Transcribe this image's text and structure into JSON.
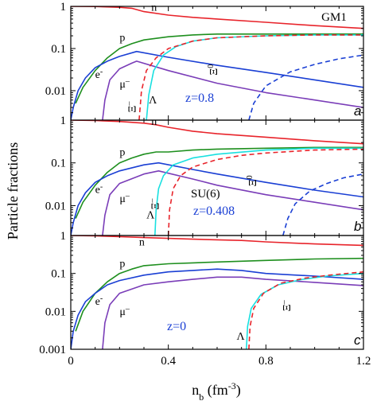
{
  "figure": {
    "ylabel": "Particle fractions",
    "xlabel": "n",
    "xlabel_sub": "b",
    "xlabel_unit": " (fm",
    "xlabel_exp": "-3",
    "xlabel_close": ")"
  },
  "x_ticks": [
    "0",
    "0.4",
    "0.8",
    "1.2"
  ],
  "y_ticks": {
    "panel_a": [
      "1",
      "0.1",
      "0.01"
    ],
    "panel_b": [
      "1",
      "0.1",
      "0.01"
    ],
    "panel_c": [
      "1",
      "0.1",
      "0.01",
      "0.001"
    ]
  },
  "colors": {
    "n": "#e8242b",
    "p": "#1e8f1e",
    "e": "#1a3fd4",
    "mu": "#7a3db8",
    "lambda": "#19e0e0",
    "xi_minus": "#e8242b",
    "xi_zero": "#1a3fd4",
    "z_text": "#1a3fd4"
  },
  "chart_data": [
    {
      "type": "line",
      "panel": "a",
      "panel_letter": "a",
      "model": "GM1",
      "z_text": "z=0.8",
      "xlim": [
        0,
        1.2
      ],
      "ylim": [
        0.002,
        1
      ],
      "yscale": "log",
      "series": [
        {
          "name": "n",
          "key": "n",
          "dashed": false,
          "x": [
            0,
            0.1,
            0.2,
            0.25,
            0.3,
            0.4,
            0.5,
            0.6,
            0.8,
            1.0,
            1.2
          ],
          "y": [
            1,
            0.99,
            0.95,
            0.9,
            0.75,
            0.62,
            0.55,
            0.5,
            0.42,
            0.35,
            0.3
          ]
        },
        {
          "name": "p",
          "key": "p",
          "dashed": false,
          "x": [
            0.02,
            0.05,
            0.1,
            0.15,
            0.2,
            0.25,
            0.3,
            0.4,
            0.5,
            0.6,
            0.8,
            1.0,
            1.2
          ],
          "y": [
            0.005,
            0.012,
            0.03,
            0.06,
            0.1,
            0.13,
            0.16,
            0.19,
            0.21,
            0.22,
            0.22,
            0.22,
            0.22
          ]
        },
        {
          "name": "e",
          "key": "e",
          "dashed": false,
          "x": [
            0.0,
            0.01,
            0.03,
            0.06,
            0.1,
            0.15,
            0.2,
            0.27,
            0.4,
            0.6,
            0.8,
            1.0,
            1.2
          ],
          "y": [
            0.002,
            0.004,
            0.01,
            0.02,
            0.035,
            0.05,
            0.065,
            0.085,
            0.062,
            0.04,
            0.027,
            0.018,
            0.012
          ]
        },
        {
          "name": "μ⁻",
          "key": "mu",
          "dashed": false,
          "x": [
            0.13,
            0.14,
            0.16,
            0.2,
            0.25,
            0.27,
            0.4,
            0.6,
            0.8,
            1.0,
            1.2
          ],
          "y": [
            0.002,
            0.006,
            0.018,
            0.033,
            0.045,
            0.05,
            0.03,
            0.015,
            0.009,
            0.006,
            0.004
          ]
        },
        {
          "name": "Λ",
          "key": "lambda",
          "dashed": false,
          "x": [
            0.31,
            0.32,
            0.34,
            0.38,
            0.43,
            0.5,
            0.6,
            0.8,
            1.0,
            1.2
          ],
          "y": [
            0.002,
            0.008,
            0.03,
            0.07,
            0.11,
            0.15,
            0.18,
            0.2,
            0.21,
            0.21
          ]
        },
        {
          "name": "Ξ⁻",
          "key": "xi_minus",
          "dashed": true,
          "x": [
            0.28,
            0.29,
            0.31,
            0.35,
            0.4,
            0.5,
            0.6,
            0.8,
            1.0,
            1.2
          ],
          "y": [
            0.002,
            0.01,
            0.03,
            0.06,
            0.1,
            0.15,
            0.18,
            0.2,
            0.21,
            0.21
          ]
        },
        {
          "name": "Ξ⁰",
          "key": "xi_zero",
          "dashed": true,
          "x": [
            0.73,
            0.75,
            0.8,
            0.9,
            1.0,
            1.1,
            1.2
          ],
          "y": [
            0.002,
            0.005,
            0.013,
            0.028,
            0.042,
            0.057,
            0.07
          ]
        }
      ],
      "labels": [
        {
          "text": "n",
          "key": "n",
          "x": 0.33,
          "y": 0.78,
          "rot": 0
        },
        {
          "text": "p",
          "key": "p",
          "x": 0.2,
          "y": 0.15,
          "rot": 0
        },
        {
          "text": "e",
          "key": "e",
          "sup": "-",
          "x": 0.1,
          "y": 0.02,
          "rot": 0
        },
        {
          "text": "μ",
          "key": "mu",
          "sup": "–",
          "x": 0.2,
          "y": 0.012,
          "rot": 0
        },
        {
          "text": "Λ",
          "key": "lambda",
          "x": 0.32,
          "y": 0.005,
          "rot": 0
        },
        {
          "text": "Ξ",
          "key": "xi_minus",
          "sup": "–",
          "x": 0.265,
          "y": 0.003,
          "rot": -90
        },
        {
          "text": "Ξ",
          "key": "xi_zero",
          "sup": "0",
          "x": 0.6,
          "y": 0.023,
          "rot": -90
        }
      ]
    },
    {
      "type": "line",
      "panel": "b",
      "panel_letter": "b",
      "model": "SU(6)",
      "z_text": "z=0.408",
      "xlim": [
        0,
        1.2
      ],
      "ylim": [
        0.002,
        1
      ],
      "yscale": "log",
      "series": [
        {
          "name": "n",
          "key": "n",
          "dashed": false,
          "x": [
            0,
            0.1,
            0.2,
            0.3,
            0.35,
            0.4,
            0.5,
            0.6,
            0.8,
            1.0,
            1.2
          ],
          "y": [
            1,
            0.98,
            0.93,
            0.85,
            0.78,
            0.68,
            0.55,
            0.48,
            0.4,
            0.33,
            0.28
          ]
        },
        {
          "name": "p",
          "key": "p",
          "dashed": false,
          "x": [
            0.02,
            0.05,
            0.1,
            0.15,
            0.2,
            0.25,
            0.3,
            0.35,
            0.4,
            0.5,
            0.6,
            0.8,
            1.0,
            1.2
          ],
          "y": [
            0.005,
            0.012,
            0.03,
            0.06,
            0.1,
            0.13,
            0.16,
            0.18,
            0.18,
            0.2,
            0.21,
            0.22,
            0.23,
            0.23
          ]
        },
        {
          "name": "e",
          "key": "e",
          "dashed": false,
          "x": [
            0.0,
            0.01,
            0.03,
            0.06,
            0.1,
            0.15,
            0.2,
            0.3,
            0.36,
            0.5,
            0.6,
            0.8,
            1.0,
            1.2
          ],
          "y": [
            0.002,
            0.004,
            0.01,
            0.02,
            0.035,
            0.05,
            0.065,
            0.09,
            0.1,
            0.07,
            0.055,
            0.035,
            0.023,
            0.016
          ]
        },
        {
          "name": "μ⁻",
          "key": "mu",
          "dashed": false,
          "x": [
            0.13,
            0.14,
            0.16,
            0.2,
            0.3,
            0.36,
            0.5,
            0.6,
            0.8,
            1.0,
            1.2
          ],
          "y": [
            0.002,
            0.006,
            0.018,
            0.033,
            0.055,
            0.065,
            0.042,
            0.03,
            0.018,
            0.012,
            0.008
          ]
        },
        {
          "name": "Λ",
          "key": "lambda",
          "dashed": false,
          "x": [
            0.345,
            0.35,
            0.36,
            0.38,
            0.42,
            0.5,
            0.6,
            0.8,
            1.0,
            1.2
          ],
          "y": [
            0.002,
            0.008,
            0.025,
            0.05,
            0.09,
            0.13,
            0.16,
            0.2,
            0.22,
            0.22
          ]
        },
        {
          "name": "Ξ⁻",
          "key": "xi_minus",
          "dashed": true,
          "x": [
            0.4,
            0.405,
            0.42,
            0.45,
            0.5,
            0.6,
            0.7,
            0.8,
            1.0,
            1.2
          ],
          "y": [
            0.002,
            0.008,
            0.025,
            0.05,
            0.08,
            0.12,
            0.15,
            0.17,
            0.2,
            0.21
          ]
        },
        {
          "name": "Ξ⁰",
          "key": "xi_zero",
          "dashed": true,
          "x": [
            0.87,
            0.89,
            0.92,
            0.98,
            1.05,
            1.12,
            1.2
          ],
          "y": [
            0.002,
            0.005,
            0.011,
            0.022,
            0.033,
            0.045,
            0.055
          ]
        }
      ],
      "labels": [
        {
          "text": "n",
          "key": "n",
          "x": 0.33,
          "y": 0.78,
          "rot": 0
        },
        {
          "text": "p",
          "key": "p",
          "x": 0.2,
          "y": 0.15,
          "rot": 0
        },
        {
          "text": "e",
          "key": "e",
          "sup": "-",
          "x": 0.1,
          "y": 0.02,
          "rot": 0
        },
        {
          "text": "μ",
          "key": "mu",
          "sup": "–",
          "x": 0.2,
          "y": 0.012,
          "rot": 0
        },
        {
          "text": "Λ",
          "key": "lambda",
          "x": 0.31,
          "y": 0.005,
          "rot": 0
        },
        {
          "text": "Ξ",
          "key": "xi_minus",
          "sup": "–",
          "x": 0.36,
          "y": 0.008,
          "rot": -90
        },
        {
          "text": "Ξ",
          "key": "xi_zero",
          "sup": "0",
          "x": 0.76,
          "y": 0.028,
          "rot": -90
        }
      ]
    },
    {
      "type": "line",
      "panel": "c",
      "panel_letter": "c",
      "model": "",
      "z_text": "z=0",
      "xlim": [
        0,
        1.2
      ],
      "ylim": [
        0.001,
        1
      ],
      "yscale": "log",
      "series": [
        {
          "name": "n",
          "key": "n",
          "dashed": false,
          "x": [
            0,
            0.1,
            0.2,
            0.3,
            0.4,
            0.5,
            0.6,
            0.7,
            0.8,
            1.0,
            1.2
          ],
          "y": [
            1,
            0.98,
            0.93,
            0.88,
            0.84,
            0.8,
            0.77,
            0.74,
            0.68,
            0.6,
            0.55
          ]
        },
        {
          "name": "p",
          "key": "p",
          "dashed": false,
          "x": [
            0.02,
            0.05,
            0.1,
            0.15,
            0.2,
            0.25,
            0.3,
            0.4,
            0.5,
            0.6,
            0.7,
            0.8,
            1.0,
            1.2
          ],
          "y": [
            0.003,
            0.01,
            0.03,
            0.06,
            0.1,
            0.13,
            0.16,
            0.18,
            0.19,
            0.2,
            0.21,
            0.22,
            0.24,
            0.25
          ]
        },
        {
          "name": "e",
          "key": "e",
          "dashed": false,
          "x": [
            0.0,
            0.01,
            0.03,
            0.06,
            0.1,
            0.15,
            0.2,
            0.3,
            0.4,
            0.5,
            0.6,
            0.7,
            0.8,
            1.0,
            1.2
          ],
          "y": [
            0.001,
            0.003,
            0.008,
            0.018,
            0.03,
            0.05,
            0.065,
            0.09,
            0.11,
            0.12,
            0.13,
            0.12,
            0.1,
            0.085,
            0.07
          ]
        },
        {
          "name": "μ⁻",
          "key": "mu",
          "dashed": false,
          "x": [
            0.13,
            0.14,
            0.16,
            0.2,
            0.3,
            0.4,
            0.5,
            0.6,
            0.7,
            0.8,
            1.0,
            1.2
          ],
          "y": [
            0.001,
            0.005,
            0.015,
            0.03,
            0.05,
            0.06,
            0.07,
            0.08,
            0.08,
            0.07,
            0.058,
            0.048
          ]
        },
        {
          "name": "Λ",
          "key": "lambda",
          "dashed": false,
          "x": [
            0.72,
            0.725,
            0.74,
            0.78,
            0.85,
            0.95,
            1.05,
            1.2
          ],
          "y": [
            0.001,
            0.004,
            0.012,
            0.028,
            0.05,
            0.07,
            0.085,
            0.1
          ]
        },
        {
          "name": "Ξ⁻",
          "key": "xi_minus",
          "dashed": true,
          "x": [
            0.73,
            0.735,
            0.75,
            0.79,
            0.86,
            0.96,
            1.06,
            1.2
          ],
          "y": [
            0.001,
            0.004,
            0.012,
            0.03,
            0.055,
            0.075,
            0.09,
            0.11
          ]
        }
      ],
      "labels": [
        {
          "text": "n",
          "key": "n",
          "x": 0.28,
          "y": 0.55,
          "rot": 0
        },
        {
          "text": "p",
          "key": "p",
          "x": 0.2,
          "y": 0.15,
          "rot": 0
        },
        {
          "text": "e",
          "key": "e",
          "sup": "-",
          "x": 0.1,
          "y": 0.015,
          "rot": 0
        },
        {
          "text": "μ",
          "key": "mu",
          "sup": "–",
          "x": 0.2,
          "y": 0.008,
          "rot": 0
        },
        {
          "text": "Λ",
          "key": "lambda",
          "x": 0.68,
          "y": 0.0018,
          "rot": 0
        },
        {
          "text": "Ξ",
          "key": "xi_minus",
          "sup": "–",
          "x": 0.9,
          "y": 0.01,
          "rot": -90
        }
      ]
    }
  ]
}
